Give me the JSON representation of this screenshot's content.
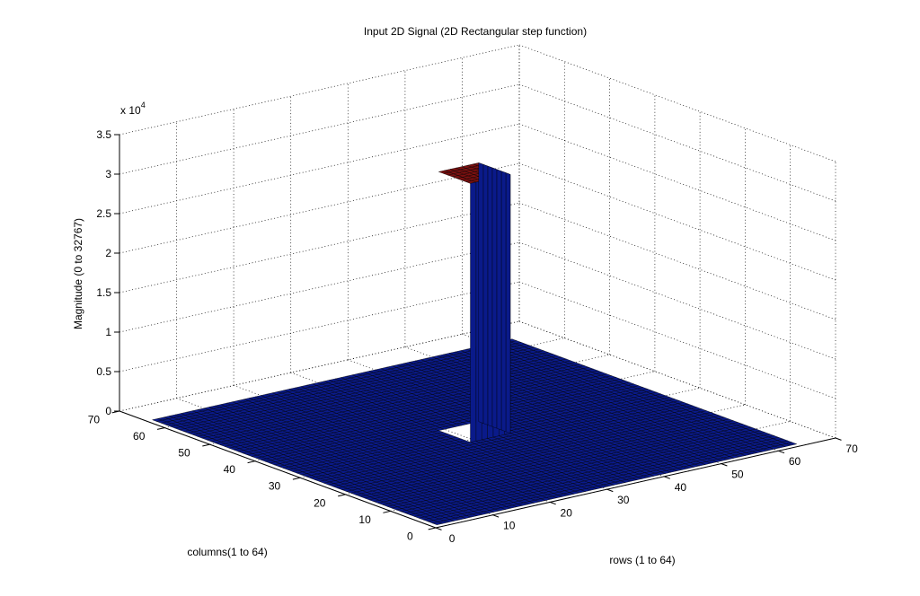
{
  "chart_data": {
    "type": "surface3d",
    "title": "Input 2D Signal (2D Rectangular step function)",
    "xlabel": "rows (1 to 64)",
    "ylabel": "columns(1 to 64)",
    "zlabel": "Magnitude (0 to 32767)",
    "z_exponent_label": "x 10",
    "z_exponent_power": "4",
    "xlim": [
      0,
      70
    ],
    "ylim": [
      0,
      70
    ],
    "zlim": [
      0,
      35000
    ],
    "x_ticks": [
      "0",
      "10",
      "20",
      "30",
      "40",
      "50",
      "60",
      "70"
    ],
    "y_ticks": [
      "0",
      "10",
      "20",
      "30",
      "40",
      "50",
      "60",
      "70"
    ],
    "z_ticks": [
      "0",
      "0.5",
      "1",
      "1.5",
      "2",
      "2.5",
      "3",
      "3.5"
    ],
    "grid": true,
    "grid_size": [
      64,
      64
    ],
    "base_value": 0,
    "step": {
      "value": 32767,
      "x_range": [
        29,
        36
      ],
      "y_range": [
        29,
        36
      ]
    },
    "colors": {
      "face": "#0a1a8a",
      "top": "#7a1010",
      "edge": "#000000"
    }
  }
}
